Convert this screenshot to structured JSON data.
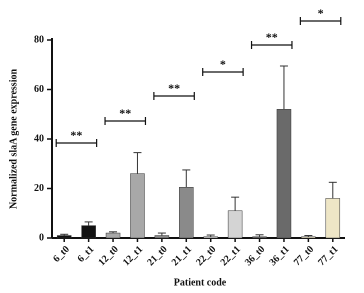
{
  "chart_data": {
    "type": "bar",
    "y_label": "Normalized slaA gene expression",
    "x_label": "Patient code",
    "categories": [
      "6_t0",
      "6_t1",
      "12_t0",
      "12_t1",
      "21_t0",
      "21_t1",
      "22_t0",
      "22_t1",
      "36_t0",
      "36_t1",
      "77_t0",
      "77_t1"
    ],
    "values": [
      1,
      5,
      2,
      26,
      1,
      20.5,
      0.5,
      11,
      0.5,
      52,
      0.5,
      16
    ],
    "errors": [
      0.5,
      1.5,
      0.5,
      8.5,
      1,
      7,
      0.7,
      5.5,
      0.8,
      17.5,
      0.5,
      6.5
    ],
    "colors": [
      "#111111",
      "#111111",
      "#a8a8a8",
      "#a8a8a8",
      "#8a8a8a",
      "#8a8a8a",
      "#d4d4d4",
      "#d4d4d4",
      "#6a6a6a",
      "#6a6a6a",
      "#eee6c6",
      "#eee6c6"
    ],
    "ylim": [
      0,
      80
    ],
    "yticks": [
      0,
      20,
      40,
      60,
      80
    ],
    "annotations": [
      "**",
      "**",
      "**",
      "*",
      "**",
      "*"
    ]
  }
}
